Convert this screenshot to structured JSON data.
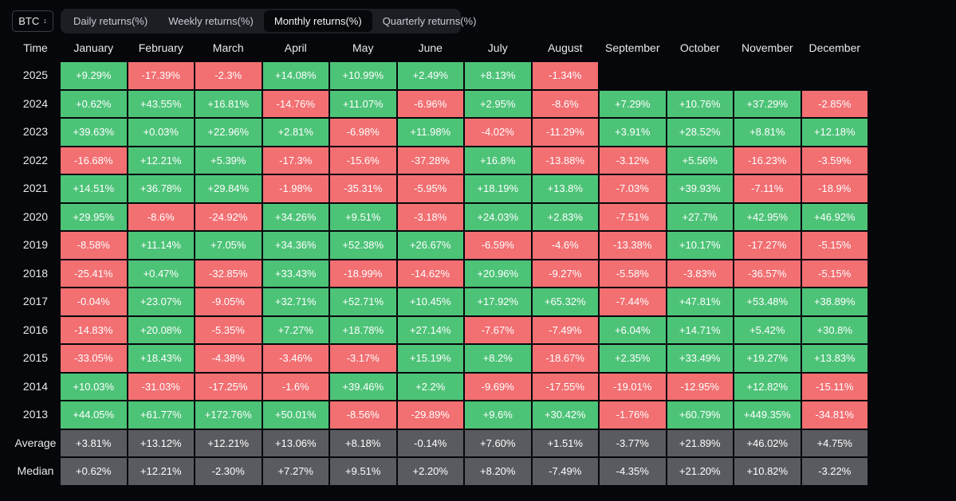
{
  "asset": "BTC",
  "tabs": [
    "Daily returns(%)",
    "Weekly returns(%)",
    "Monthly returns(%)",
    "Quarterly returns(%)"
  ],
  "active_tab": 2,
  "header": {
    "time": "Time",
    "months": [
      "January",
      "February",
      "March",
      "April",
      "May",
      "June",
      "July",
      "August",
      "September",
      "October",
      "November",
      "December"
    ]
  },
  "colors": {
    "positive": "#4dc378",
    "negative": "#f26f72",
    "summary": "#5a5b60",
    "background": "#06070b"
  },
  "rows": [
    {
      "label": "2025",
      "values": [
        "+9.29%",
        "-17.39%",
        "-2.3%",
        "+14.08%",
        "+10.99%",
        "+2.49%",
        "+8.13%",
        "-1.34%",
        "",
        "",
        "",
        ""
      ]
    },
    {
      "label": "2024",
      "values": [
        "+0.62%",
        "+43.55%",
        "+16.81%",
        "-14.76%",
        "+11.07%",
        "-6.96%",
        "+2.95%",
        "-8.6%",
        "+7.29%",
        "+10.76%",
        "+37.29%",
        "-2.85%"
      ]
    },
    {
      "label": "2023",
      "values": [
        "+39.63%",
        "+0.03%",
        "+22.96%",
        "+2.81%",
        "-6.98%",
        "+11.98%",
        "-4.02%",
        "-11.29%",
        "+3.91%",
        "+28.52%",
        "+8.81%",
        "+12.18%"
      ]
    },
    {
      "label": "2022",
      "values": [
        "-16.68%",
        "+12.21%",
        "+5.39%",
        "-17.3%",
        "-15.6%",
        "-37.28%",
        "+16.8%",
        "-13.88%",
        "-3.12%",
        "+5.56%",
        "-16.23%",
        "-3.59%"
      ]
    },
    {
      "label": "2021",
      "values": [
        "+14.51%",
        "+36.78%",
        "+29.84%",
        "-1.98%",
        "-35.31%",
        "-5.95%",
        "+18.19%",
        "+13.8%",
        "-7.03%",
        "+39.93%",
        "-7.11%",
        "-18.9%"
      ]
    },
    {
      "label": "2020",
      "values": [
        "+29.95%",
        "-8.6%",
        "-24.92%",
        "+34.26%",
        "+9.51%",
        "-3.18%",
        "+24.03%",
        "+2.83%",
        "-7.51%",
        "+27.7%",
        "+42.95%",
        "+46.92%"
      ]
    },
    {
      "label": "2019",
      "values": [
        "-8.58%",
        "+11.14%",
        "+7.05%",
        "+34.36%",
        "+52.38%",
        "+26.67%",
        "-6.59%",
        "-4.6%",
        "-13.38%",
        "+10.17%",
        "-17.27%",
        "-5.15%"
      ]
    },
    {
      "label": "2018",
      "values": [
        "-25.41%",
        "+0.47%",
        "-32.85%",
        "+33.43%",
        "-18.99%",
        "-14.62%",
        "+20.96%",
        "-9.27%",
        "-5.58%",
        "-3.83%",
        "-36.57%",
        "-5.15%"
      ]
    },
    {
      "label": "2017",
      "values": [
        "-0.04%",
        "+23.07%",
        "-9.05%",
        "+32.71%",
        "+52.71%",
        "+10.45%",
        "+17.92%",
        "+65.32%",
        "-7.44%",
        "+47.81%",
        "+53.48%",
        "+38.89%"
      ]
    },
    {
      "label": "2016",
      "values": [
        "-14.83%",
        "+20.08%",
        "-5.35%",
        "+7.27%",
        "+18.78%",
        "+27.14%",
        "-7.67%",
        "-7.49%",
        "+6.04%",
        "+14.71%",
        "+5.42%",
        "+30.8%"
      ]
    },
    {
      "label": "2015",
      "values": [
        "-33.05%",
        "+18.43%",
        "-4.38%",
        "-3.46%",
        "-3.17%",
        "+15.19%",
        "+8.2%",
        "-18.67%",
        "+2.35%",
        "+33.49%",
        "+19.27%",
        "+13.83%"
      ]
    },
    {
      "label": "2014",
      "values": [
        "+10.03%",
        "-31.03%",
        "-17.25%",
        "-1.6%",
        "+39.46%",
        "+2.2%",
        "-9.69%",
        "-17.55%",
        "-19.01%",
        "-12.95%",
        "+12.82%",
        "-15.11%"
      ]
    },
    {
      "label": "2013",
      "values": [
        "+44.05%",
        "+61.77%",
        "+172.76%",
        "+50.01%",
        "-8.56%",
        "-29.89%",
        "+9.6%",
        "+30.42%",
        "-1.76%",
        "+60.79%",
        "+449.35%",
        "-34.81%"
      ]
    }
  ],
  "summary": [
    {
      "label": "Average",
      "values": [
        "+3.81%",
        "+13.12%",
        "+12.21%",
        "+13.06%",
        "+8.18%",
        "-0.14%",
        "+7.60%",
        "+1.51%",
        "-3.77%",
        "+21.89%",
        "+46.02%",
        "+4.75%"
      ]
    },
    {
      "label": "Median",
      "values": [
        "+0.62%",
        "+12.21%",
        "-2.30%",
        "+7.27%",
        "+9.51%",
        "+2.20%",
        "+8.20%",
        "-7.49%",
        "-4.35%",
        "+21.20%",
        "+10.82%",
        "-3.22%"
      ]
    }
  ]
}
